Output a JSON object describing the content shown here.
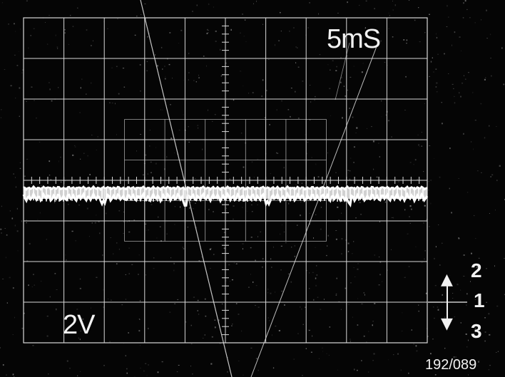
{
  "screen": {
    "timebase_label": "5mS",
    "volts_label": "2V",
    "indicator": {
      "top_number": "2",
      "middle_number": "1",
      "bottom_number": "3",
      "up_arrow_icon": "arrow-up-icon",
      "down_arrow_icon": "arrow-down-icon"
    },
    "reference_code": "192/089",
    "trace_level_fraction": 0.5
  },
  "colors": {
    "background": "#050505",
    "graticule": "#d8d8d8",
    "trace": "#ffffff",
    "text": "#f2f2f2"
  }
}
